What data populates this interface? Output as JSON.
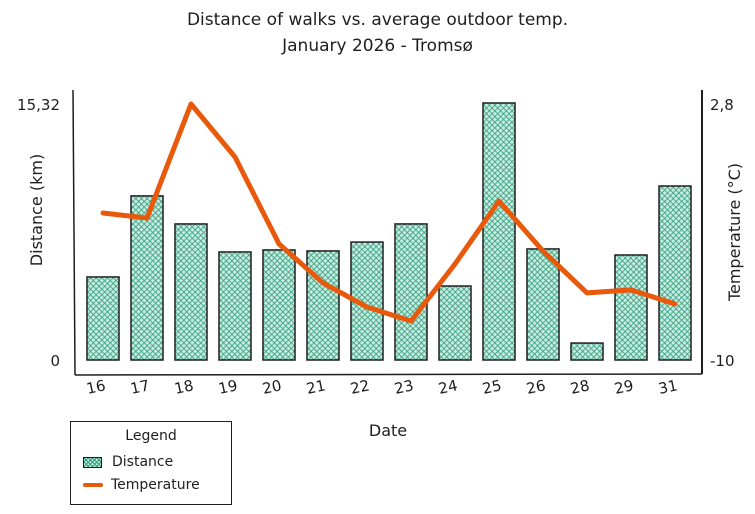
{
  "title": {
    "line1": "Distance of walks vs. average outdoor temp.",
    "line2": "January 2026 - Tromsø"
  },
  "axes": {
    "left": {
      "label": "Distance (km)",
      "max_label": "15,32",
      "min_label": "0"
    },
    "right": {
      "label": "Temperature (°C)",
      "max_label": "2,8",
      "min_label": "-10"
    },
    "x": {
      "label": "Date"
    }
  },
  "legend": {
    "title": "Legend",
    "items": [
      {
        "label": "Distance",
        "type": "bar"
      },
      {
        "label": "Temperature",
        "type": "line"
      }
    ]
  },
  "colors": {
    "bar_fill": "#2f9e7e",
    "bar_bg": "#c9ebe0",
    "line": "#e8590c",
    "axis": "#1e1e1e"
  },
  "chart_data": {
    "type": "bar",
    "title": "Distance of walks vs. average outdoor temp. January 2026 - Tromsø",
    "xlabel": "Date",
    "ylabel": "Distance (km)",
    "y2label": "Temperature (°C)",
    "ylim": [
      0,
      15.32
    ],
    "y2lim": [
      -10,
      2.8
    ],
    "categories": [
      "16",
      "17",
      "18",
      "19",
      "20",
      "21",
      "22",
      "23",
      "24",
      "25",
      "26",
      "28",
      "29",
      "31"
    ],
    "series": [
      {
        "name": "Distance",
        "type": "bar",
        "axis": "left",
        "values": [
          4.95,
          9.78,
          8.11,
          6.44,
          6.56,
          6.5,
          7.03,
          8.11,
          4.41,
          15.32,
          6.62,
          1.01,
          6.26,
          10.37
        ]
      },
      {
        "name": "Temperature",
        "type": "line",
        "axis": "right",
        "values": [
          -2.68,
          -2.93,
          2.75,
          0.11,
          -4.22,
          -6.16,
          -7.36,
          -8.06,
          -5.22,
          -2.08,
          -4.57,
          -6.66,
          -6.51,
          -7.21
        ]
      }
    ],
    "grid": false,
    "legend_position": "bottom-left"
  }
}
